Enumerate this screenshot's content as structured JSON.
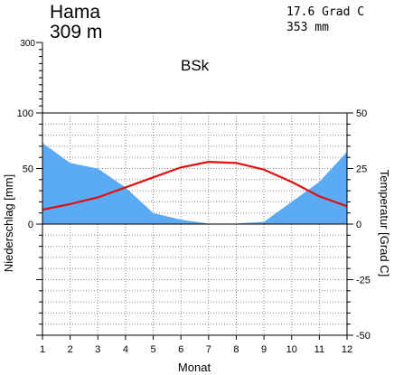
{
  "chart_data": {
    "type": "area",
    "station": "Hama",
    "elevation": "309 m",
    "mean_temperature": "17.6 Grad C",
    "annual_precipitation": "353 mm",
    "climate_class": "BSk",
    "xlabel": "Monat",
    "ylabel_left": "Niederschlag [mm]",
    "ylabel_right": "Temperatur [Grad C]",
    "x": [
      1,
      2,
      3,
      4,
      5,
      6,
      7,
      8,
      9,
      10,
      11,
      12
    ],
    "x_tick_labels": [
      "1",
      "2",
      "3",
      "4",
      "5",
      "6",
      "7",
      "8",
      "9",
      "10",
      "11",
      "12"
    ],
    "precip_ylim": [
      -100,
      100
    ],
    "precip_ticks": [
      0,
      50,
      100
    ],
    "precip_tick_labels": [
      "0",
      "50",
      "100"
    ],
    "precip_extra_ticks": [
      300
    ],
    "precip_extra_tick_labels": [
      "300"
    ],
    "temp_ylim": [
      -50,
      50
    ],
    "temp_ticks": [
      -50,
      -25,
      0,
      25,
      50
    ],
    "temp_tick_labels": [
      "-50",
      "-25",
      "0",
      "25",
      "50"
    ],
    "grid": true,
    "series": [
      {
        "values": [
          73,
          55,
          50,
          33,
          10,
          4,
          0.5,
          0.5,
          2,
          20,
          38,
          65
        ],
        "color": "#5aaaf4"
      },
      {
        "values": [
          6.5,
          9,
          12,
          16.5,
          21,
          25.5,
          28,
          27.5,
          24.5,
          19,
          12.5,
          8
        ],
        "color": "#e01010"
      }
    ]
  }
}
